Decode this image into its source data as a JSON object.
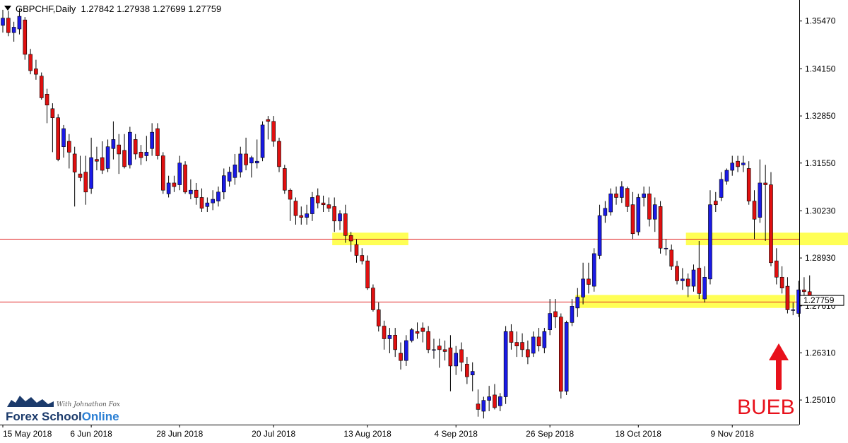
{
  "header": {
    "symbol": "GBPCHF,Daily",
    "ohlc": "1.27842 1.27938 1.27699 1.27759"
  },
  "annotation": {
    "label": "BUEB"
  },
  "logo": {
    "tagline": "With Johnathon Fox",
    "brand_part1": "Forex School",
    "brand_part2": "Online"
  },
  "colors": {
    "bull": "#1a1ae6",
    "bear": "#e01010",
    "level_line": "#e02020",
    "zone": "#ffff55",
    "arrow": "#e8111b"
  },
  "chart_data": {
    "type": "candlestick",
    "title": "GBPCHF,Daily",
    "timeframe": "Daily",
    "ohlc_current": {
      "open": 1.27842,
      "high": 1.27938,
      "low": 1.27699,
      "close": 1.27759
    },
    "current_price_label": "1.27759",
    "y_ticks": [
      "1.35470",
      "1.34150",
      "1.32850",
      "1.31550",
      "1.30230",
      "1.28930",
      "1.27610",
      "1.26310",
      "1.25010"
    ],
    "x_ticks": [
      "15 May 2018",
      "6 Jun 2018",
      "28 Jun 2018",
      "20 Jul 2018",
      "13 Aug 2018",
      "4 Sep 2018",
      "26 Sep 2018",
      "18 Oct 2018",
      "9 Nov 2018"
    ],
    "ylim": [
      1.2433,
      1.3605
    ],
    "horizontal_levels": [
      1.2946,
      1.2773
    ],
    "zones": [
      {
        "from_bar": 60,
        "to_bar": 73,
        "low": 1.2936,
        "high": 1.2955
      },
      {
        "from_bar": 124,
        "to_bar": 167,
        "low": 1.2936,
        "high": 1.2955
      },
      {
        "from_bar": 104,
        "to_bar": 143,
        "low": 1.2763,
        "high": 1.2783
      }
    ],
    "candles": [
      [
        1.3535,
        1.3578,
        1.3515,
        1.3555
      ],
      [
        1.3555,
        1.3575,
        1.3505,
        1.3515
      ],
      [
        1.3515,
        1.3545,
        1.349,
        1.353
      ],
      [
        1.3525,
        1.3582,
        1.351,
        1.356
      ],
      [
        1.355,
        1.3558,
        1.344,
        1.3455
      ],
      [
        1.3455,
        1.347,
        1.34,
        1.341
      ],
      [
        1.3415,
        1.344,
        1.3385,
        1.34
      ],
      [
        1.3395,
        1.3405,
        1.333,
        1.3335
      ],
      [
        1.3345,
        1.336,
        1.3265,
        1.3315
      ],
      [
        1.3305,
        1.332,
        1.3185,
        1.328
      ],
      [
        1.328,
        1.329,
        1.316,
        1.3165
      ],
      [
        1.32,
        1.326,
        1.317,
        1.325
      ],
      [
        1.3215,
        1.3235,
        1.314,
        1.3185
      ],
      [
        1.318,
        1.32,
        1.3035,
        1.313
      ],
      [
        1.3125,
        1.3175,
        1.3105,
        1.3115
      ],
      [
        1.313,
        1.3175,
        1.304,
        1.3075
      ],
      [
        1.3085,
        1.3225,
        1.307,
        1.317
      ],
      [
        1.3165,
        1.32,
        1.3135,
        1.316
      ],
      [
        1.317,
        1.3215,
        1.3125,
        1.3135
      ],
      [
        1.314,
        1.322,
        1.313,
        1.32
      ],
      [
        1.3195,
        1.327,
        1.3165,
        1.322
      ],
      [
        1.3205,
        1.3235,
        1.3125,
        1.318
      ],
      [
        1.319,
        1.3235,
        1.314,
        1.3145
      ],
      [
        1.315,
        1.3255,
        1.314,
        1.324
      ],
      [
        1.322,
        1.3235,
        1.3165,
        1.318
      ],
      [
        1.3185,
        1.3205,
        1.315,
        1.317
      ],
      [
        1.3175,
        1.323,
        1.316,
        1.3185
      ],
      [
        1.3195,
        1.3265,
        1.3175,
        1.324
      ],
      [
        1.325,
        1.3265,
        1.3165,
        1.3175
      ],
      [
        1.3175,
        1.3185,
        1.307,
        1.308
      ],
      [
        1.307,
        1.312,
        1.306,
        1.31
      ],
      [
        1.31,
        1.312,
        1.3075,
        1.309
      ],
      [
        1.3095,
        1.3175,
        1.308,
        1.3155
      ],
      [
        1.315,
        1.316,
        1.307,
        1.3075
      ],
      [
        1.307,
        1.311,
        1.3055,
        1.308
      ],
      [
        1.308,
        1.31,
        1.304,
        1.306
      ],
      [
        1.306,
        1.3085,
        1.302,
        1.303
      ],
      [
        1.3035,
        1.306,
        1.302,
        1.3045
      ],
      [
        1.3045,
        1.308,
        1.3025,
        1.3055
      ],
      [
        1.305,
        1.309,
        1.3035,
        1.3075
      ],
      [
        1.3075,
        1.314,
        1.3055,
        1.312
      ],
      [
        1.3105,
        1.3145,
        1.309,
        1.313
      ],
      [
        1.3115,
        1.318,
        1.3095,
        1.315
      ],
      [
        1.313,
        1.32,
        1.3115,
        1.318
      ],
      [
        1.318,
        1.3225,
        1.3135,
        1.315
      ],
      [
        1.3155,
        1.3175,
        1.3115,
        1.317
      ],
      [
        1.3155,
        1.322,
        1.314,
        1.316
      ],
      [
        1.317,
        1.327,
        1.316,
        1.326
      ],
      [
        1.3275,
        1.3285,
        1.322,
        1.327
      ],
      [
        1.327,
        1.3285,
        1.32,
        1.3215
      ],
      [
        1.3215,
        1.3225,
        1.313,
        1.3145
      ],
      [
        1.314,
        1.315,
        1.307,
        1.308
      ],
      [
        1.308,
        1.3085,
        1.2995,
        1.3055
      ],
      [
        1.305,
        1.306,
        1.2985,
        1.301
      ],
      [
        1.301,
        1.3035,
        1.2985,
        1.3005
      ],
      [
        1.3005,
        1.304,
        1.2985,
        1.3015
      ],
      [
        1.3015,
        1.3075,
        1.2995,
        1.306
      ],
      [
        1.3065,
        1.3085,
        1.303,
        1.3045
      ],
      [
        1.3045,
        1.3065,
        1.302,
        1.304
      ],
      [
        1.304,
        1.306,
        1.302,
        1.303
      ],
      [
        1.3035,
        1.306,
        1.2965,
        1.2995
      ],
      [
        1.2995,
        1.3025,
        1.297,
        1.3015
      ],
      [
        1.3015,
        1.304,
        1.2935,
        1.2955
      ],
      [
        1.2955,
        1.2965,
        1.291,
        1.294
      ],
      [
        1.293,
        1.2945,
        1.288,
        1.29
      ],
      [
        1.29,
        1.292,
        1.2875,
        1.2885
      ],
      [
        1.2885,
        1.29,
        1.2805,
        1.281
      ],
      [
        1.281,
        1.282,
        1.2745,
        1.275
      ],
      [
        1.275,
        1.277,
        1.269,
        1.2705
      ],
      [
        1.2705,
        1.272,
        1.264,
        1.267
      ],
      [
        1.267,
        1.27,
        1.263,
        1.268
      ],
      [
        1.268,
        1.27,
        1.262,
        1.264
      ],
      [
        1.263,
        1.266,
        1.2585,
        1.261
      ],
      [
        1.261,
        1.268,
        1.2595,
        1.2665
      ],
      [
        1.2665,
        1.27,
        1.266,
        1.2695
      ],
      [
        1.269,
        1.2715,
        1.267,
        1.2685
      ],
      [
        1.27,
        1.2715,
        1.266,
        1.269
      ],
      [
        1.269,
        1.2705,
        1.263,
        1.264
      ],
      [
        1.264,
        1.267,
        1.2615,
        1.264
      ],
      [
        1.265,
        1.267,
        1.259,
        1.264
      ],
      [
        1.264,
        1.2665,
        1.261,
        1.2635
      ],
      [
        1.2645,
        1.268,
        1.2525,
        1.2595
      ],
      [
        1.2595,
        1.265,
        1.257,
        1.263
      ],
      [
        1.264,
        1.266,
        1.258,
        1.2605
      ],
      [
        1.26,
        1.262,
        1.2545,
        1.2565
      ],
      [
        1.257,
        1.2605,
        1.2525,
        1.258
      ],
      [
        1.249,
        1.253,
        1.2455,
        1.2475
      ],
      [
        1.247,
        1.251,
        1.245,
        1.25
      ],
      [
        1.25,
        1.254,
        1.247,
        1.251
      ],
      [
        1.2515,
        1.2545,
        1.2475,
        1.248
      ],
      [
        1.2485,
        1.252,
        1.247,
        1.251
      ],
      [
        1.251,
        1.2705,
        1.249,
        1.269
      ],
      [
        1.269,
        1.271,
        1.264,
        1.266
      ],
      [
        1.266,
        1.269,
        1.262,
        1.265
      ],
      [
        1.266,
        1.2685,
        1.262,
        1.264
      ],
      [
        1.264,
        1.2665,
        1.26,
        1.262
      ],
      [
        1.263,
        1.269,
        1.262,
        1.2675
      ],
      [
        1.2675,
        1.27,
        1.2635,
        1.265
      ],
      [
        1.2645,
        1.27,
        1.263,
        1.269
      ],
      [
        1.2695,
        1.278,
        1.268,
        1.274
      ],
      [
        1.2745,
        1.278,
        1.27,
        1.273
      ],
      [
        1.273,
        1.274,
        1.2505,
        1.2525
      ],
      [
        1.2525,
        1.272,
        1.2515,
        1.2715
      ],
      [
        1.2715,
        1.278,
        1.2705,
        1.276
      ],
      [
        1.2755,
        1.281,
        1.273,
        1.2785
      ],
      [
        1.2785,
        1.288,
        1.2765,
        1.2835
      ],
      [
        1.2835,
        1.288,
        1.2795,
        1.282
      ],
      [
        1.2815,
        1.292,
        1.28,
        1.2905
      ],
      [
        1.29,
        1.304,
        1.289,
        1.301
      ],
      [
        1.301,
        1.305,
        1.299,
        1.303
      ],
      [
        1.302,
        1.3085,
        1.301,
        1.307
      ],
      [
        1.307,
        1.309,
        1.304,
        1.306
      ],
      [
        1.306,
        1.3105,
        1.3045,
        1.309
      ],
      [
        1.3085,
        1.309,
        1.302,
        1.3035
      ],
      [
        1.304,
        1.3075,
        1.2945,
        1.296
      ],
      [
        1.2965,
        1.307,
        1.2955,
        1.306
      ],
      [
        1.306,
        1.309,
        1.3035,
        1.307
      ],
      [
        1.307,
        1.309,
        1.298,
        1.3
      ],
      [
        1.3,
        1.306,
        1.2965,
        1.304
      ],
      [
        1.3035,
        1.305,
        1.2905,
        1.292
      ],
      [
        1.292,
        1.2945,
        1.29,
        1.292
      ],
      [
        1.2915,
        1.293,
        1.286,
        1.287
      ],
      [
        1.287,
        1.2885,
        1.282,
        1.283
      ],
      [
        1.283,
        1.2865,
        1.2805,
        1.2835
      ],
      [
        1.2835,
        1.285,
        1.2785,
        1.2815
      ],
      [
        1.2815,
        1.2875,
        1.28,
        1.286
      ],
      [
        1.2865,
        1.294,
        1.278,
        1.2795
      ],
      [
        1.278,
        1.287,
        1.277,
        1.284
      ],
      [
        1.2835,
        1.308,
        1.282,
        1.304
      ],
      [
        1.305,
        1.3075,
        1.302,
        1.304
      ],
      [
        1.306,
        1.313,
        1.305,
        1.311
      ],
      [
        1.3105,
        1.314,
        1.3095,
        1.3135
      ],
      [
        1.3135,
        1.3175,
        1.312,
        1.3155
      ],
      [
        1.316,
        1.3175,
        1.313,
        1.3145
      ],
      [
        1.315,
        1.3175,
        1.313,
        1.3155
      ],
      [
        1.314,
        1.316,
        1.304,
        1.305
      ],
      [
        1.305,
        1.308,
        1.2945,
        1.3
      ],
      [
        1.3005,
        1.3165,
        1.299,
        1.31
      ],
      [
        1.31,
        1.315,
        1.294,
        1.3095
      ],
      [
        1.3095,
        1.313,
        1.287,
        1.288
      ],
      [
        1.2885,
        1.292,
        1.282,
        1.284
      ],
      [
        1.284,
        1.287,
        1.2795,
        1.281
      ],
      [
        1.2815,
        1.284,
        1.274,
        1.275
      ],
      [
        1.275,
        1.277,
        1.2735,
        1.275
      ],
      [
        1.274,
        1.283,
        1.273,
        1.2805
      ],
      [
        1.2805,
        1.284,
        1.278,
        1.28
      ],
      [
        1.28,
        1.2845,
        1.2775,
        1.2785
      ]
    ]
  }
}
